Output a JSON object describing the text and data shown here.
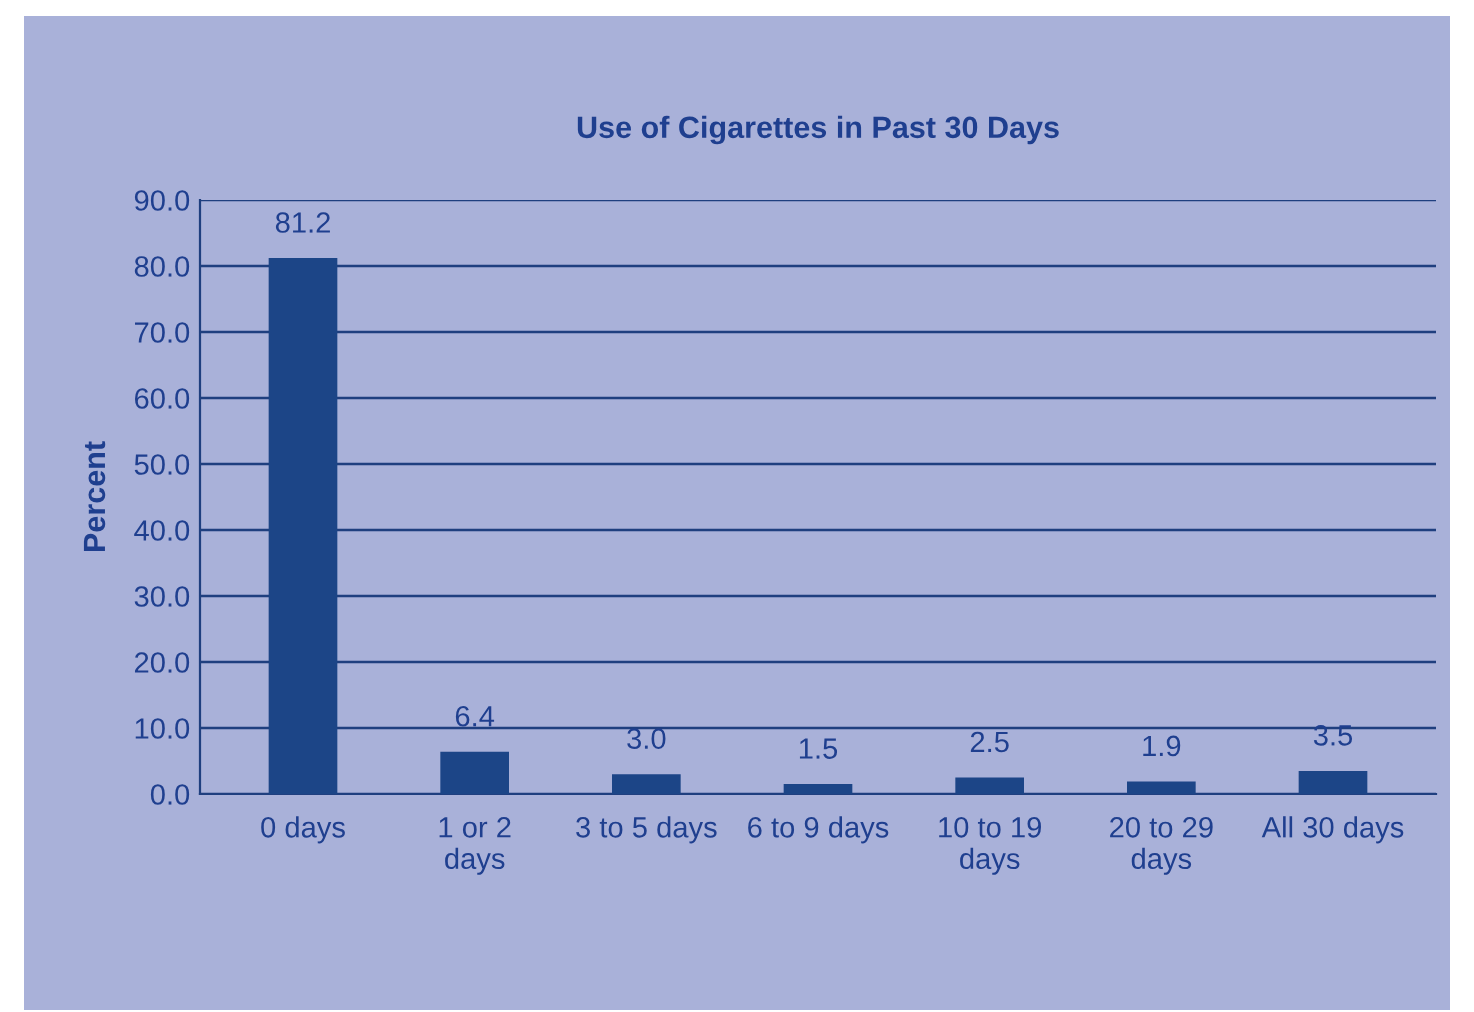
{
  "chart_data": {
    "type": "bar",
    "title": "Use of Cigarettes in Past 30 Days",
    "ylabel": "Percent",
    "categories": [
      "0 days",
      "1 or 2\ndays",
      "3 to 5 days",
      "6 to 9 days",
      "10 to 19\ndays",
      "20 to 29\ndays",
      "All 30 days"
    ],
    "values": [
      81.2,
      6.4,
      3.0,
      1.5,
      2.5,
      1.9,
      3.5
    ],
    "color": "#1c4587",
    "ylim": [
      0,
      90
    ],
    "yticks": [
      {
        "value": 0,
        "label": "0.0"
      },
      {
        "value": 10,
        "label": "10.0"
      },
      {
        "value": 20,
        "label": "20.0"
      },
      {
        "value": 30,
        "label": "30.0"
      },
      {
        "value": 40,
        "label": "40.0"
      },
      {
        "value": 50,
        "label": "50.0"
      },
      {
        "value": 60,
        "label": "60.0"
      },
      {
        "value": 70,
        "label": "70.0"
      },
      {
        "value": 80,
        "label": "80.0"
      },
      {
        "value": 90,
        "label": "90.0"
      }
    ],
    "grid": "y",
    "value_labels": [
      "81.2",
      "6.4",
      "3.0",
      "1.5",
      "2.5",
      "1.9",
      "3.5"
    ]
  }
}
